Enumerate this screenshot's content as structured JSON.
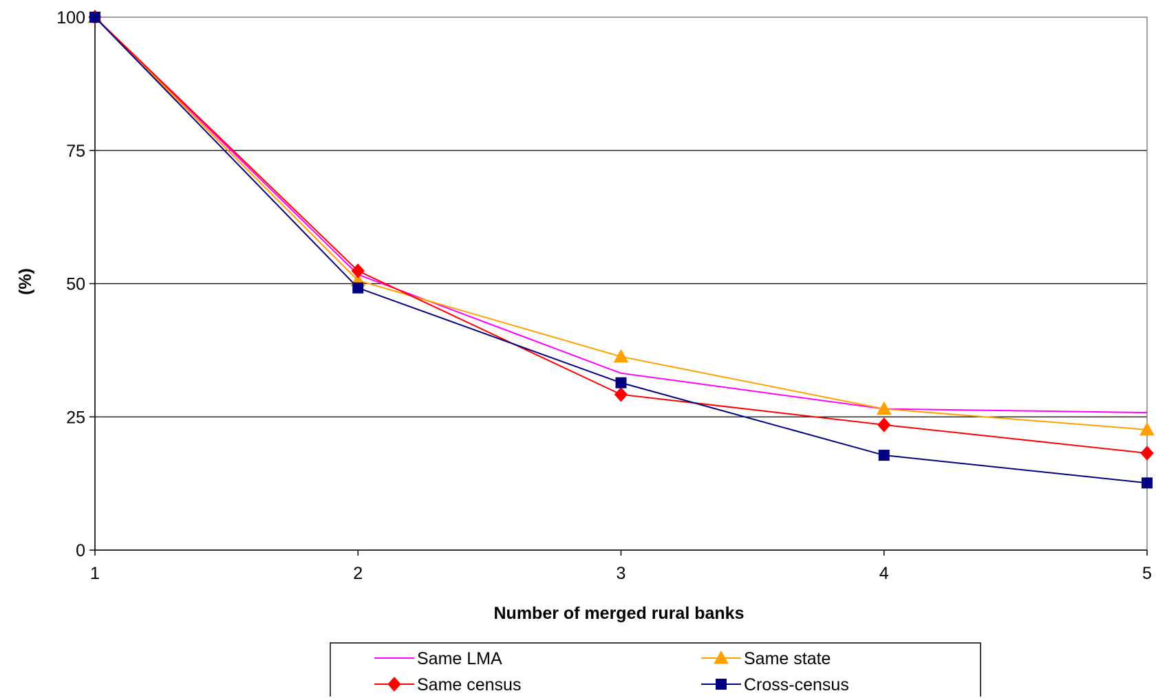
{
  "chart_data": {
    "type": "line",
    "title": "",
    "xlabel": "Number of merged rural banks",
    "ylabel": "(%)",
    "x": [
      1,
      2,
      3,
      4,
      5
    ],
    "xlim": [
      1,
      5
    ],
    "ylim": [
      0,
      100
    ],
    "xticks": [
      "1",
      "2",
      "3",
      "4",
      "5"
    ],
    "yticks": [
      "0",
      "25",
      "50",
      "75",
      "100"
    ],
    "grid": "horizontal",
    "legend_position": "bottom",
    "series": [
      {
        "name": "Same LMA",
        "values": [
          100,
          51.7,
          33.2,
          26.5,
          25.8
        ],
        "color": "#ff00ff",
        "marker": "none"
      },
      {
        "name": "Same state",
        "values": [
          100,
          50.6,
          36.3,
          26.5,
          22.6
        ],
        "color": "#ffa000",
        "marker": "triangle"
      },
      {
        "name": "Same census",
        "values": [
          100,
          52.4,
          29.2,
          23.5,
          18.2
        ],
        "color": "#ff0000",
        "marker": "diamond"
      },
      {
        "name": "Cross-census",
        "values": [
          100,
          49.2,
          31.4,
          17.8,
          12.6
        ],
        "color": "#000080",
        "marker": "square"
      }
    ]
  }
}
